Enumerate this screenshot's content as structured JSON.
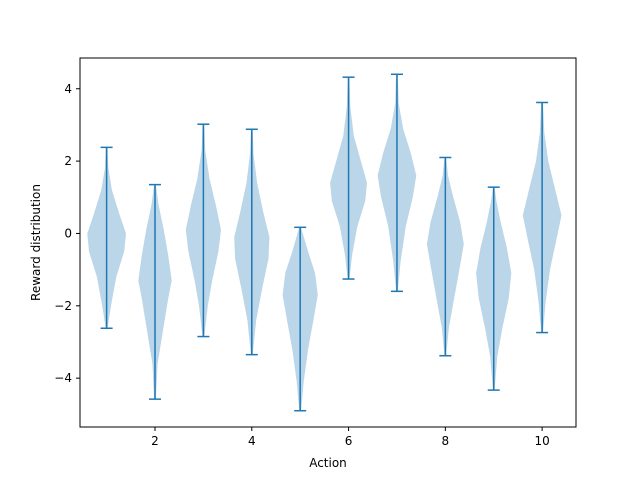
{
  "chart_data": {
    "type": "violin",
    "xlabel": "Action",
    "ylabel": "Reward distribution",
    "xlim": [
      0.45,
      10.7
    ],
    "ylim": [
      -5.35,
      4.85
    ],
    "x_ticks": [
      2,
      4,
      6,
      8,
      10
    ],
    "y_ticks": [
      -4,
      -2,
      0,
      2,
      4
    ],
    "grid": false,
    "colors": {
      "body": "#1f77b4",
      "body_opacity": 0.3,
      "lines": "#1f77b4",
      "axes": "#000000"
    },
    "violins": [
      {
        "action": 1,
        "min": -2.62,
        "max": 2.38,
        "density": [
          [
            -2.62,
            0.02
          ],
          [
            -2.0,
            0.1
          ],
          [
            -1.2,
            0.22
          ],
          [
            -0.5,
            0.4
          ],
          [
            0.0,
            0.44
          ],
          [
            0.5,
            0.3
          ],
          [
            1.2,
            0.12
          ],
          [
            1.8,
            0.04
          ],
          [
            2.38,
            0.02
          ]
        ]
      },
      {
        "action": 2,
        "min": -4.58,
        "max": 1.35,
        "density": [
          [
            -4.58,
            0.02
          ],
          [
            -3.6,
            0.06
          ],
          [
            -2.7,
            0.18
          ],
          [
            -1.8,
            0.3
          ],
          [
            -1.3,
            0.38
          ],
          [
            -0.6,
            0.3
          ],
          [
            0.1,
            0.2
          ],
          [
            0.8,
            0.08
          ],
          [
            1.35,
            0.02
          ]
        ]
      },
      {
        "action": 3,
        "min": -2.85,
        "max": 3.02,
        "density": [
          [
            -2.85,
            0.02
          ],
          [
            -2.0,
            0.1
          ],
          [
            -1.3,
            0.2
          ],
          [
            -0.5,
            0.34
          ],
          [
            0.1,
            0.4
          ],
          [
            0.8,
            0.28
          ],
          [
            1.5,
            0.14
          ],
          [
            2.3,
            0.04
          ],
          [
            3.02,
            0.02
          ]
        ]
      },
      {
        "action": 4,
        "min": -3.35,
        "max": 2.88,
        "density": [
          [
            -3.35,
            0.02
          ],
          [
            -2.4,
            0.1
          ],
          [
            -1.5,
            0.24
          ],
          [
            -0.7,
            0.38
          ],
          [
            -0.1,
            0.4
          ],
          [
            0.6,
            0.26
          ],
          [
            1.4,
            0.12
          ],
          [
            2.2,
            0.04
          ],
          [
            2.88,
            0.02
          ]
        ]
      },
      {
        "action": 5,
        "min": -4.9,
        "max": 0.17,
        "density": [
          [
            -4.9,
            0.02
          ],
          [
            -4.1,
            0.08
          ],
          [
            -3.2,
            0.18
          ],
          [
            -2.4,
            0.3
          ],
          [
            -1.7,
            0.4
          ],
          [
            -1.1,
            0.34
          ],
          [
            -0.5,
            0.18
          ],
          [
            0.0,
            0.06
          ],
          [
            0.17,
            0.02
          ]
        ]
      },
      {
        "action": 6,
        "min": -1.26,
        "max": 4.32,
        "density": [
          [
            -1.26,
            0.02
          ],
          [
            -0.6,
            0.08
          ],
          [
            0.2,
            0.2
          ],
          [
            0.9,
            0.38
          ],
          [
            1.4,
            0.42
          ],
          [
            2.0,
            0.28
          ],
          [
            2.7,
            0.12
          ],
          [
            3.5,
            0.04
          ],
          [
            4.32,
            0.02
          ]
        ]
      },
      {
        "action": 7,
        "min": -1.6,
        "max": 4.4,
        "density": [
          [
            -1.6,
            0.02
          ],
          [
            -0.8,
            0.08
          ],
          [
            0.2,
            0.2
          ],
          [
            1.0,
            0.36
          ],
          [
            1.6,
            0.44
          ],
          [
            2.2,
            0.32
          ],
          [
            2.9,
            0.14
          ],
          [
            3.6,
            0.04
          ],
          [
            4.4,
            0.02
          ]
        ]
      },
      {
        "action": 8,
        "min": -3.38,
        "max": 2.1,
        "density": [
          [
            -3.38,
            0.02
          ],
          [
            -2.6,
            0.08
          ],
          [
            -1.8,
            0.2
          ],
          [
            -1.0,
            0.32
          ],
          [
            -0.3,
            0.42
          ],
          [
            0.3,
            0.34
          ],
          [
            1.0,
            0.18
          ],
          [
            1.6,
            0.06
          ],
          [
            2.1,
            0.02
          ]
        ]
      },
      {
        "action": 9,
        "min": -4.33,
        "max": 1.28,
        "density": [
          [
            -4.33,
            0.02
          ],
          [
            -3.4,
            0.08
          ],
          [
            -2.6,
            0.2
          ],
          [
            -1.8,
            0.34
          ],
          [
            -1.1,
            0.4
          ],
          [
            -0.4,
            0.3
          ],
          [
            0.3,
            0.16
          ],
          [
            0.9,
            0.06
          ],
          [
            1.28,
            0.02
          ]
        ]
      },
      {
        "action": 10,
        "min": -2.74,
        "max": 3.62,
        "density": [
          [
            -2.74,
            0.02
          ],
          [
            -1.9,
            0.08
          ],
          [
            -1.0,
            0.18
          ],
          [
            -0.2,
            0.32
          ],
          [
            0.5,
            0.44
          ],
          [
            1.2,
            0.3
          ],
          [
            2.0,
            0.14
          ],
          [
            2.8,
            0.05
          ],
          [
            3.62,
            0.02
          ]
        ]
      }
    ]
  }
}
